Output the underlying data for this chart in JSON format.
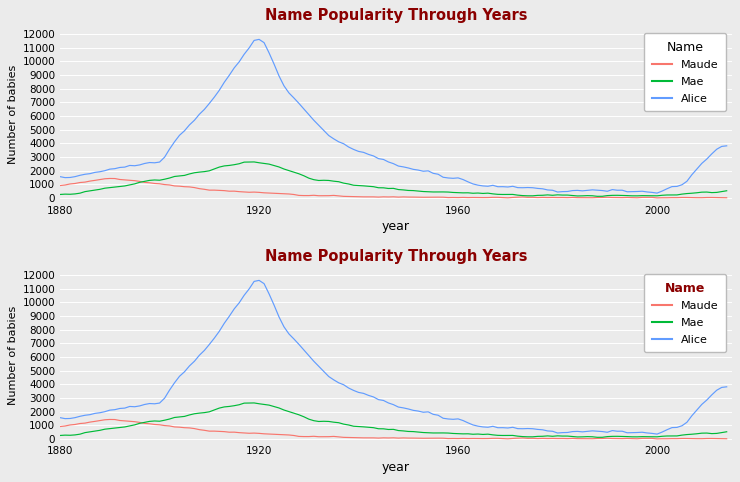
{
  "title": "Name Popularity Through Years",
  "xlabel": "year",
  "ylabel": "Number of babies",
  "legend_title": "Name",
  "names": [
    "Maude",
    "Mae",
    "Alice"
  ],
  "colors": {
    "Maude": "#F8766D",
    "Mae": "#00BA38",
    "Alice": "#619CFF"
  },
  "bg_color": "#EBEBEB",
  "grid_color": "#FFFFFF",
  "title_color": "#8B0000",
  "legend_title_color_top": "#000000",
  "legend_title_color_bottom": "#8B0000",
  "ylim_bottom": -200,
  "ylim_top": 12500,
  "yticks": [
    0,
    1000,
    2000,
    3000,
    4000,
    5000,
    6000,
    7000,
    8000,
    9000,
    10000,
    11000,
    12000
  ],
  "xlim": [
    1880,
    2015
  ],
  "xticks": [
    1880,
    1920,
    1960,
    2000
  ]
}
